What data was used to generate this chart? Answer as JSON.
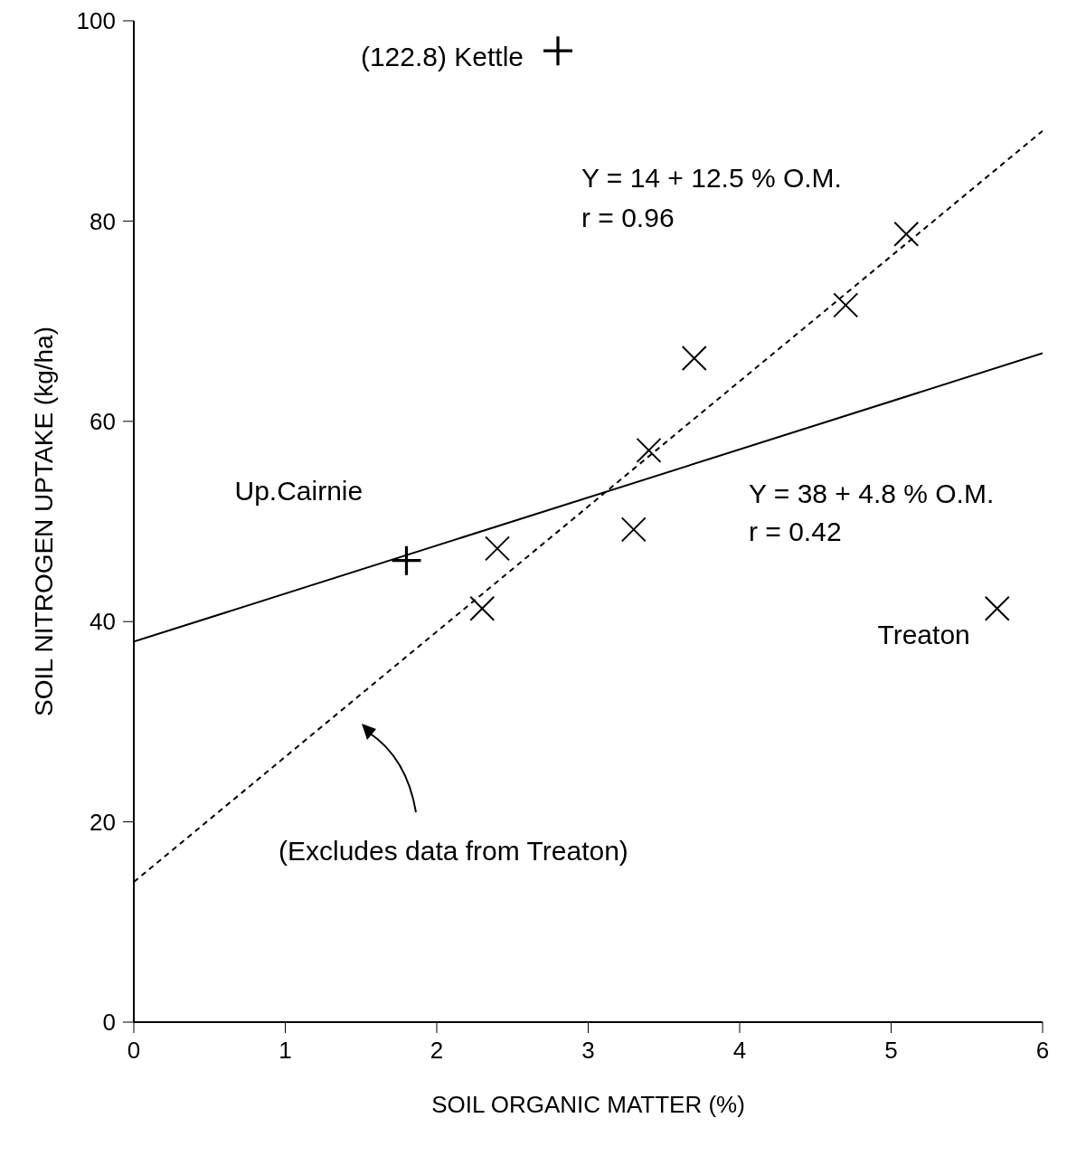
{
  "chart_data": {
    "type": "scatter",
    "xlabel": "SOIL ORGANIC MATTER (%)",
    "ylabel": "SOIL NITROGEN UPTAKE (kg/ha)",
    "xlim": [
      0,
      6
    ],
    "xticks": [
      0,
      1,
      2,
      3,
      4,
      5,
      6
    ],
    "ylim": [
      0,
      100
    ],
    "yticks": [
      0,
      20,
      40,
      60,
      80,
      100
    ],
    "grid": false,
    "legend": false,
    "series": [
      {
        "color": "#000000",
        "x": [
          2.3,
          2.4,
          3.3,
          3.4,
          3.7,
          4.7,
          5.1,
          5.7
        ],
        "values": [
          41.3,
          47.3,
          49.2,
          57.1,
          66.3,
          71.6,
          78.7,
          41.3
        ]
      },
      {
        "marker": "cross",
        "color": "#000000",
        "x": [
          1.8,
          2.8
        ],
        "values": [
          46.1,
          97
        ]
      },
      {
        "type": "line",
        "line_style": "solid",
        "color": "#000000",
        "x": [
          0,
          6
        ],
        "values": [
          38,
          66.8
        ]
      },
      {
        "type": "line",
        "line_style": "dashed",
        "color": "#000000",
        "x": [
          0,
          6
        ],
        "values": [
          14,
          89
        ]
      }
    ],
    "annotations": [
      {
        "text": "(122.8) Kettle",
        "x": 2.8,
        "y": 97
      },
      {
        "text": "Up.Cairnie",
        "x": 1.8,
        "y": 46.1
      },
      {
        "text": "Treaton",
        "x": 5.7,
        "y": 41.3
      },
      "Y = 14 + 12.5 % O.M.",
      "r = 0.96",
      "Y = 38 + 4.8 % O.M.",
      "r = 0.42",
      "(Excludes data from Treaton)"
    ]
  }
}
